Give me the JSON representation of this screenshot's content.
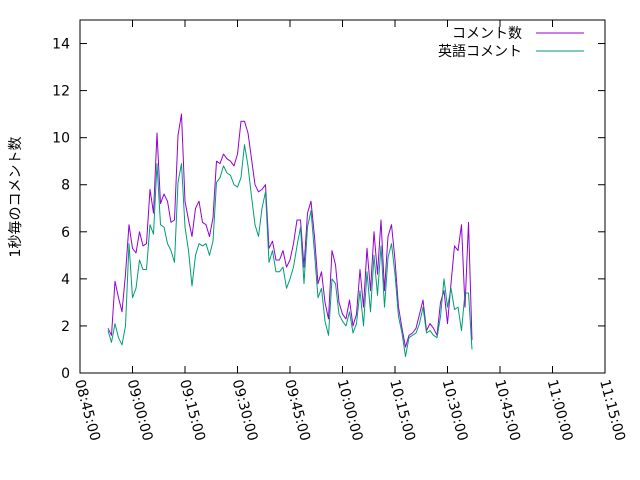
{
  "chart_data": {
    "type": "line",
    "ylabel": "1秒毎のコメント数",
    "xlabel": "",
    "ylim": [
      0,
      15
    ],
    "y_ticks": [
      "0",
      "2",
      "4",
      "6",
      "8",
      "10",
      "12",
      "14"
    ],
    "x_ticks": [
      "08:45:00",
      "09:00:00",
      "09:15:00",
      "09:30:00",
      "09:45:00",
      "10:00:00",
      "10:15:00",
      "10:30:00",
      "10:45:00",
      "11:00:00",
      "11:15:00"
    ],
    "legend_position": "top-right",
    "grid": false,
    "series": [
      {
        "name": "コメント数",
        "color": "#9400d3",
        "points": [
          [
            "08:53:00",
            1.9
          ],
          [
            "08:54:00",
            1.6
          ],
          [
            "08:55:00",
            3.9
          ],
          [
            "08:56:00",
            3.2
          ],
          [
            "08:57:00",
            2.6
          ],
          [
            "08:58:00",
            4.2
          ],
          [
            "08:59:00",
            6.3
          ],
          [
            "09:00:00",
            5.3
          ],
          [
            "09:01:00",
            5.1
          ],
          [
            "09:02:00",
            6.0
          ],
          [
            "09:03:00",
            5.4
          ],
          [
            "09:04:00",
            5.5
          ],
          [
            "09:05:00",
            7.8
          ],
          [
            "09:06:00",
            6.8
          ],
          [
            "09:07:00",
            10.2
          ],
          [
            "09:08:00",
            7.2
          ],
          [
            "09:09:00",
            7.6
          ],
          [
            "09:10:00",
            7.3
          ],
          [
            "09:11:00",
            6.4
          ],
          [
            "09:12:00",
            6.5
          ],
          [
            "09:13:00",
            10.1
          ],
          [
            "09:14:00",
            11.0
          ],
          [
            "09:15:00",
            7.3
          ],
          [
            "09:16:00",
            6.5
          ],
          [
            "09:17:00",
            5.8
          ],
          [
            "09:18:00",
            7.0
          ],
          [
            "09:19:00",
            7.3
          ],
          [
            "09:20:00",
            6.4
          ],
          [
            "09:21:00",
            6.3
          ],
          [
            "09:22:00",
            5.8
          ],
          [
            "09:23:00",
            6.6
          ],
          [
            "09:24:00",
            9.0
          ],
          [
            "09:25:00",
            8.9
          ],
          [
            "09:26:00",
            9.3
          ],
          [
            "09:27:00",
            9.1
          ],
          [
            "09:28:00",
            9.0
          ],
          [
            "09:29:00",
            8.8
          ],
          [
            "09:30:00",
            9.3
          ],
          [
            "09:31:00",
            10.7
          ],
          [
            "09:32:00",
            10.7
          ],
          [
            "09:33:00",
            10.2
          ],
          [
            "09:34:00",
            9.1
          ],
          [
            "09:35:00",
            8.0
          ],
          [
            "09:36:00",
            7.7
          ],
          [
            "09:37:00",
            7.8
          ],
          [
            "09:38:00",
            8.0
          ],
          [
            "09:39:00",
            5.3
          ],
          [
            "09:40:00",
            5.6
          ],
          [
            "09:41:00",
            4.8
          ],
          [
            "09:42:00",
            4.8
          ],
          [
            "09:43:00",
            5.2
          ],
          [
            "09:44:00",
            4.5
          ],
          [
            "09:45:00",
            4.8
          ],
          [
            "09:46:00",
            5.5
          ],
          [
            "09:47:00",
            6.5
          ],
          [
            "09:48:00",
            6.5
          ],
          [
            "09:49:00",
            4.5
          ],
          [
            "09:50:00",
            6.8
          ],
          [
            "09:51:00",
            7.3
          ],
          [
            "09:52:00",
            5.8
          ],
          [
            "09:53:00",
            3.8
          ],
          [
            "09:54:00",
            4.3
          ],
          [
            "09:55:00",
            3.0
          ],
          [
            "09:56:00",
            2.3
          ],
          [
            "09:57:00",
            5.2
          ],
          [
            "09:58:00",
            4.6
          ],
          [
            "09:59:00",
            3.0
          ],
          [
            "10:00:00",
            2.5
          ],
          [
            "10:01:00",
            2.3
          ],
          [
            "10:02:00",
            3.1
          ],
          [
            "10:03:00",
            2.0
          ],
          [
            "10:04:00",
            2.5
          ],
          [
            "10:05:00",
            4.4
          ],
          [
            "10:06:00",
            2.8
          ],
          [
            "10:07:00",
            5.3
          ],
          [
            "10:08:00",
            3.5
          ],
          [
            "10:09:00",
            6.0
          ],
          [
            "10:10:00",
            4.2
          ],
          [
            "10:11:00",
            6.5
          ],
          [
            "10:12:00",
            3.5
          ],
          [
            "10:13:00",
            5.8
          ],
          [
            "10:14:00",
            6.3
          ],
          [
            "10:15:00",
            4.8
          ],
          [
            "10:16:00",
            2.8
          ],
          [
            "10:17:00",
            1.9
          ],
          [
            "10:18:00",
            1.1
          ],
          [
            "10:19:00",
            1.6
          ],
          [
            "10:20:00",
            1.7
          ],
          [
            "10:21:00",
            1.9
          ],
          [
            "10:22:00",
            2.5
          ],
          [
            "10:23:00",
            3.1
          ],
          [
            "10:24:00",
            1.8
          ],
          [
            "10:25:00",
            2.1
          ],
          [
            "10:26:00",
            1.9
          ],
          [
            "10:27:00",
            1.6
          ],
          [
            "10:28:00",
            3.0
          ],
          [
            "10:29:00",
            3.5
          ],
          [
            "10:30:00",
            2.1
          ],
          [
            "10:31:00",
            3.8
          ],
          [
            "10:32:00",
            5.4
          ],
          [
            "10:33:00",
            5.2
          ],
          [
            "10:34:00",
            6.3
          ],
          [
            "10:35:00",
            2.8
          ],
          [
            "10:36:00",
            6.4
          ],
          [
            "10:37:00",
            1.4
          ]
        ]
      },
      {
        "name": "英語コメント",
        "color": "#009e73",
        "points": [
          [
            "08:53:00",
            1.8
          ],
          [
            "08:54:00",
            1.3
          ],
          [
            "08:55:00",
            2.1
          ],
          [
            "08:56:00",
            1.5
          ],
          [
            "08:57:00",
            1.2
          ],
          [
            "08:58:00",
            2.0
          ],
          [
            "08:59:00",
            5.5
          ],
          [
            "09:00:00",
            3.2
          ],
          [
            "09:01:00",
            3.6
          ],
          [
            "09:02:00",
            4.8
          ],
          [
            "09:03:00",
            4.4
          ],
          [
            "09:04:00",
            4.4
          ],
          [
            "09:05:00",
            6.3
          ],
          [
            "09:06:00",
            5.9
          ],
          [
            "09:07:00",
            8.9
          ],
          [
            "09:08:00",
            6.3
          ],
          [
            "09:09:00",
            6.2
          ],
          [
            "09:10:00",
            5.5
          ],
          [
            "09:11:00",
            5.2
          ],
          [
            "09:12:00",
            4.7
          ],
          [
            "09:13:00",
            8.1
          ],
          [
            "09:14:00",
            8.9
          ],
          [
            "09:15:00",
            6.2
          ],
          [
            "09:16:00",
            5.2
          ],
          [
            "09:17:00",
            3.7
          ],
          [
            "09:18:00",
            5.0
          ],
          [
            "09:19:00",
            5.5
          ],
          [
            "09:20:00",
            5.4
          ],
          [
            "09:21:00",
            5.5
          ],
          [
            "09:22:00",
            5.0
          ],
          [
            "09:23:00",
            5.6
          ],
          [
            "09:24:00",
            8.1
          ],
          [
            "09:25:00",
            8.3
          ],
          [
            "09:26:00",
            8.8
          ],
          [
            "09:27:00",
            8.5
          ],
          [
            "09:28:00",
            8.4
          ],
          [
            "09:29:00",
            8.0
          ],
          [
            "09:30:00",
            7.9
          ],
          [
            "09:31:00",
            8.3
          ],
          [
            "09:32:00",
            9.7
          ],
          [
            "09:33:00",
            8.8
          ],
          [
            "09:34:00",
            7.5
          ],
          [
            "09:35:00",
            6.3
          ],
          [
            "09:36:00",
            5.8
          ],
          [
            "09:37:00",
            7.0
          ],
          [
            "09:38:00",
            7.7
          ],
          [
            "09:39:00",
            4.7
          ],
          [
            "09:40:00",
            5.2
          ],
          [
            "09:41:00",
            4.3
          ],
          [
            "09:42:00",
            4.3
          ],
          [
            "09:43:00",
            4.5
          ],
          [
            "09:44:00",
            3.6
          ],
          [
            "09:45:00",
            4.0
          ],
          [
            "09:46:00",
            4.5
          ],
          [
            "09:47:00",
            5.4
          ],
          [
            "09:48:00",
            6.2
          ],
          [
            "09:49:00",
            3.8
          ],
          [
            "09:50:00",
            6.2
          ],
          [
            "09:51:00",
            6.9
          ],
          [
            "09:52:00",
            5.1
          ],
          [
            "09:53:00",
            3.2
          ],
          [
            "09:54:00",
            3.6
          ],
          [
            "09:55:00",
            2.2
          ],
          [
            "09:56:00",
            1.6
          ],
          [
            "09:57:00",
            4.0
          ],
          [
            "09:58:00",
            3.8
          ],
          [
            "09:59:00",
            2.5
          ],
          [
            "10:00:00",
            2.2
          ],
          [
            "10:01:00",
            2.0
          ],
          [
            "10:02:00",
            2.6
          ],
          [
            "10:03:00",
            1.7
          ],
          [
            "10:04:00",
            2.1
          ],
          [
            "10:05:00",
            3.5
          ],
          [
            "10:06:00",
            2.0
          ],
          [
            "10:07:00",
            4.3
          ],
          [
            "10:08:00",
            2.6
          ],
          [
            "10:09:00",
            5.0
          ],
          [
            "10:10:00",
            3.3
          ],
          [
            "10:11:00",
            5.4
          ],
          [
            "10:12:00",
            2.8
          ],
          [
            "10:13:00",
            4.9
          ],
          [
            "10:14:00",
            5.5
          ],
          [
            "10:15:00",
            4.2
          ],
          [
            "10:16:00",
            2.4
          ],
          [
            "10:17:00",
            1.7
          ],
          [
            "10:18:00",
            0.7
          ],
          [
            "10:19:00",
            1.5
          ],
          [
            "10:20:00",
            1.6
          ],
          [
            "10:21:00",
            1.7
          ],
          [
            "10:22:00",
            2.1
          ],
          [
            "10:23:00",
            2.8
          ],
          [
            "10:24:00",
            1.7
          ],
          [
            "10:25:00",
            1.8
          ],
          [
            "10:26:00",
            1.6
          ],
          [
            "10:27:00",
            1.5
          ],
          [
            "10:28:00",
            2.4
          ],
          [
            "10:29:00",
            4.0
          ],
          [
            "10:30:00",
            2.8
          ],
          [
            "10:31:00",
            3.6
          ],
          [
            "10:32:00",
            2.7
          ],
          [
            "10:33:00",
            2.8
          ],
          [
            "10:34:00",
            1.8
          ],
          [
            "10:35:00",
            3.4
          ],
          [
            "10:36:00",
            3.4
          ],
          [
            "10:37:00",
            1.0
          ]
        ]
      }
    ]
  }
}
